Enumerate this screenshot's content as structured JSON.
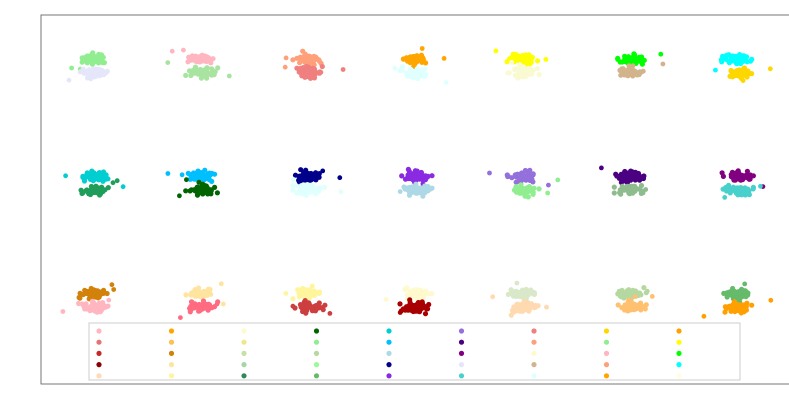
{
  "chart_data": {
    "type": "scatter",
    "title": "",
    "xlabel": "",
    "ylabel": "",
    "grid": false,
    "legend_placement": "lower-center",
    "rows": [
      {
        "groups": [
          {
            "x": 1,
            "y_upper": 8.45,
            "y_lower": 8.1,
            "color_upper": "#90EE90",
            "color_lower": "#E6E6FA"
          },
          {
            "x": 2,
            "y_upper": 8.45,
            "y_lower": 8.1,
            "color_upper": "#FFB6C1",
            "color_lower": "#A8E4A0"
          },
          {
            "x": 3,
            "y_upper": 8.45,
            "y_lower": 8.1,
            "color_upper": "#FFA07A",
            "color_lower": "#F08080"
          },
          {
            "x": 4,
            "y_upper": 8.45,
            "y_lower": 8.1,
            "color_upper": "#FFA500",
            "color_lower": "#E0FFFF"
          },
          {
            "x": 5,
            "y_upper": 8.45,
            "y_lower": 8.1,
            "color_upper": "#FFFF00",
            "color_lower": "#FAFAD2"
          },
          {
            "x": 6,
            "y_upper": 8.45,
            "y_lower": 8.1,
            "color_upper": "#00FF00",
            "color_lower": "#D2B48C"
          },
          {
            "x": 7,
            "y_upper": 8.45,
            "y_lower": 8.1,
            "color_upper": "#00FFFF",
            "color_lower": "#FFD700"
          }
        ]
      },
      {
        "groups": [
          {
            "x": 1,
            "y_upper": 5.4,
            "y_lower": 5.05,
            "color_upper": "#00CED1",
            "color_lower": "#1E9E5A"
          },
          {
            "x": 2,
            "y_upper": 5.4,
            "y_lower": 5.05,
            "color_upper": "#00BFFF",
            "color_lower": "#006400"
          },
          {
            "x": 3,
            "y_upper": 5.4,
            "y_lower": 5.05,
            "color_upper": "#00008B",
            "color_lower": "#E0FFFF"
          },
          {
            "x": 4,
            "y_upper": 5.4,
            "y_lower": 5.05,
            "color_upper": "#8A2BE2",
            "color_lower": "#ADD8E6"
          },
          {
            "x": 5,
            "y_upper": 5.4,
            "y_lower": 5.05,
            "color_upper": "#9370DB",
            "color_lower": "#90EE90"
          },
          {
            "x": 6,
            "y_upper": 5.4,
            "y_lower": 5.05,
            "color_upper": "#4B0082",
            "color_lower": "#8FBC8F"
          },
          {
            "x": 7,
            "y_upper": 5.4,
            "y_lower": 5.05,
            "color_upper": "#800080",
            "color_lower": "#48D1CC"
          }
        ]
      },
      {
        "groups": [
          {
            "x": 1,
            "y_upper": 2.35,
            "y_lower": 2.0,
            "color_upper": "#D2820A",
            "color_lower": "#FFB6C1"
          },
          {
            "x": 2,
            "y_upper": 2.35,
            "y_lower": 2.0,
            "color_upper": "#FFE4A0",
            "color_lower": "#FF6B81"
          },
          {
            "x": 3,
            "y_upper": 2.35,
            "y_lower": 2.0,
            "color_upper": "#FFF59D",
            "color_lower": "#CD3E3E"
          },
          {
            "x": 4,
            "y_upper": 2.35,
            "y_lower": 2.0,
            "color_upper": "#FFFACD",
            "color_lower": "#A80000"
          },
          {
            "x": 5,
            "y_upper": 2.35,
            "y_lower": 2.0,
            "color_upper": "#D8E8C8",
            "color_lower": "#FFDAB0"
          },
          {
            "x": 6,
            "y_upper": 2.35,
            "y_lower": 2.0,
            "color_upper": "#B5D8A0",
            "color_lower": "#FFC070"
          },
          {
            "x": 7,
            "y_upper": 2.35,
            "y_lower": 2.0,
            "color_upper": "#66BB6A",
            "color_lower": "#FFA000"
          }
        ]
      }
    ],
    "xlim": [
      0.5,
      7.5
    ],
    "ylim": [
      0.0,
      9.6
    ],
    "legend_colors": [
      [
        "#FFB6C1",
        "#E57373",
        "#C62828",
        "#8B0000",
        "#FFDAB9"
      ],
      [
        "#FFA500",
        "#FFC04D",
        "#D2820A",
        "#FFE4A0",
        "#FFF59D"
      ],
      [
        "#FFFACD",
        "#F0E68C",
        "#C5E1A5",
        "#A5D6A7",
        "#2E8B57"
      ],
      [
        "#006400",
        "#90EE90",
        "#B5D8A0",
        "#98FB98",
        "#66BB6A"
      ],
      [
        "#00CED1",
        "#00BFFF",
        "#ADD8E6",
        "#00008B",
        "#8A2BE2"
      ],
      [
        "#9370DB",
        "#4B0082",
        "#800080",
        "#E6E6FA",
        "#48D1CC"
      ],
      [
        "#F08080",
        "#FFA07A",
        "#FFFACD",
        "#D2B48C",
        "#E0FFFF"
      ],
      [
        "#FFD700",
        "#90EE90",
        "#FFB6C1",
        "#FFA07A",
        "#FFA500"
      ],
      [
        "#FFA000",
        "#FFFF00",
        "#00FF00",
        "#00FFFF",
        "#FFFFE0"
      ]
    ]
  }
}
